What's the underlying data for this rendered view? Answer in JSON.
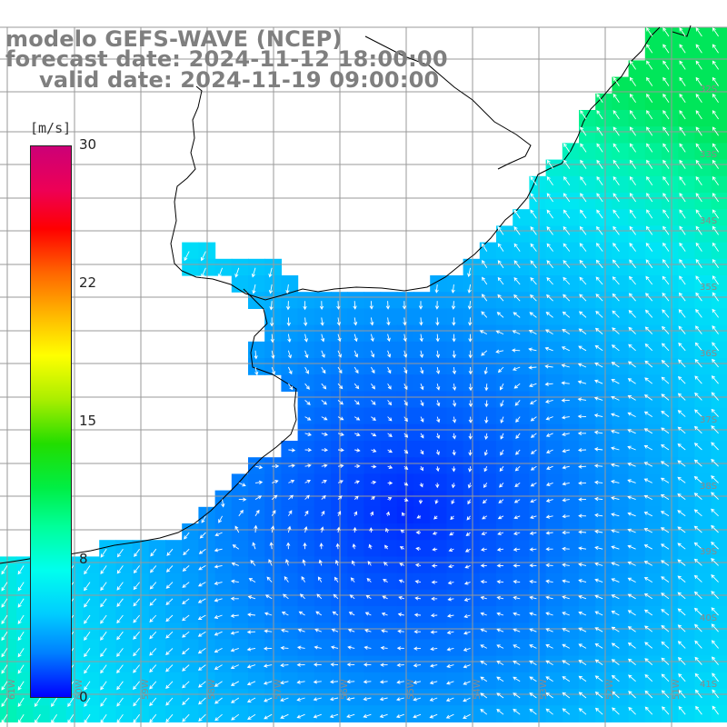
{
  "title": {
    "line1": "modelo GEFS-WAVE (NCEP)",
    "line2": "forecast date: 2024-11-12 18:00:00",
    "line3": "valid date: 2024-11-19 09:00:00"
  },
  "colorbar": {
    "unit": "[m/s]",
    "ticks": [
      "30",
      "22",
      "15",
      "8",
      "0"
    ],
    "tick_values": [
      30,
      22,
      15,
      8,
      0
    ],
    "colors": [
      "#0000ff",
      "#0080ff",
      "#00ccff",
      "#00ffee",
      "#00ff99",
      "#00ee44",
      "#22dd00",
      "#aaee00",
      "#ffff00",
      "#ffbb00",
      "#ff6600",
      "#ff0000",
      "#ee0055",
      "#cc0077"
    ]
  },
  "map": {
    "lat_labels": [
      "32S",
      "33S",
      "34S",
      "35S",
      "36S",
      "37S",
      "38S",
      "39S",
      "40S",
      "41S"
    ],
    "lon_labels": [
      "61W",
      "60W",
      "59W",
      "58W",
      "57W",
      "56W",
      "55W",
      "54W",
      "53W",
      "52W",
      "51W"
    ],
    "lat_range": [
      -41.4,
      -31.0
    ],
    "lon_range": [
      -61.2,
      -50.4
    ],
    "field": "wind speed and direction (arrows)",
    "low_center": {
      "lon": -55.0,
      "lat": -38.4
    }
  }
}
